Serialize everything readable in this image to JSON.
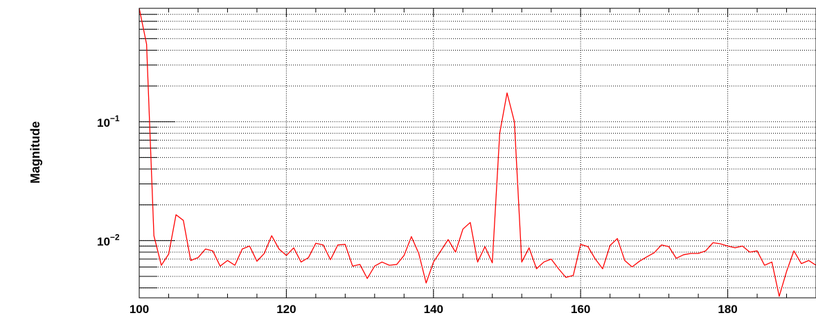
{
  "chart_data": {
    "type": "line",
    "title": "",
    "xlabel": "",
    "ylabel": "Magnitude",
    "xlim": [
      100,
      192
    ],
    "ylim": [
      0.0033,
      0.9
    ],
    "y_scale": "log",
    "grid": true,
    "grid_style": "dotted",
    "x_ticks": [
      {
        "value": 100,
        "label": "100"
      },
      {
        "value": 120,
        "label": "120"
      },
      {
        "value": 140,
        "label": "140"
      },
      {
        "value": 160,
        "label": "160"
      },
      {
        "value": 180,
        "label": "180"
      }
    ],
    "y_ticks": [
      {
        "value": 0.01,
        "base": "10",
        "exp": "−2"
      },
      {
        "value": 0.1,
        "base": "10",
        "exp": "−1"
      }
    ],
    "series": [
      {
        "color": "#ff0000",
        "x": [
          100,
          101,
          102,
          103,
          104,
          105,
          106,
          107,
          108,
          109,
          110,
          111,
          112,
          113,
          114,
          115,
          116,
          117,
          118,
          119,
          120,
          121,
          122,
          123,
          124,
          125,
          126,
          127,
          128,
          129,
          130,
          131,
          132,
          133,
          134,
          135,
          136,
          137,
          138,
          139,
          140,
          141,
          142,
          143,
          144,
          145,
          146,
          147,
          148,
          149,
          150,
          151,
          152,
          153,
          154,
          155,
          156,
          157,
          158,
          159,
          160,
          161,
          162,
          163,
          164,
          165,
          166,
          167,
          168,
          169,
          170,
          171,
          172,
          173,
          174,
          175,
          176,
          177,
          178,
          179,
          180,
          181,
          182,
          183,
          184,
          185,
          186,
          187,
          188,
          189,
          190,
          191,
          192
        ],
        "y": [
          0.9,
          0.45,
          0.011,
          0.0062,
          0.0077,
          0.0165,
          0.0148,
          0.0068,
          0.0072,
          0.0085,
          0.0082,
          0.0061,
          0.0068,
          0.0062,
          0.0085,
          0.009,
          0.0067,
          0.0078,
          0.011,
          0.0085,
          0.0075,
          0.0087,
          0.0066,
          0.0072,
          0.0095,
          0.0092,
          0.0069,
          0.0092,
          0.0093,
          0.0061,
          0.0063,
          0.0048,
          0.0061,
          0.0066,
          0.0062,
          0.0063,
          0.0075,
          0.0108,
          0.0078,
          0.0044,
          0.0066,
          0.0082,
          0.0102,
          0.008,
          0.0125,
          0.0142,
          0.0066,
          0.0089,
          0.0065,
          0.08,
          0.175,
          0.1,
          0.0066,
          0.0087,
          0.0058,
          0.0066,
          0.007,
          0.0058,
          0.0049,
          0.0051,
          0.0093,
          0.0089,
          0.007,
          0.0058,
          0.0091,
          0.0104,
          0.0068,
          0.006,
          0.0067,
          0.0073,
          0.0079,
          0.0092,
          0.0089,
          0.0071,
          0.0076,
          0.0078,
          0.0078,
          0.0082,
          0.0096,
          0.0094,
          0.009,
          0.0087,
          0.009,
          0.008,
          0.0082,
          0.0062,
          0.0066,
          0.0034,
          0.0055,
          0.0082,
          0.0064,
          0.0068,
          0.0062
        ]
      }
    ]
  }
}
